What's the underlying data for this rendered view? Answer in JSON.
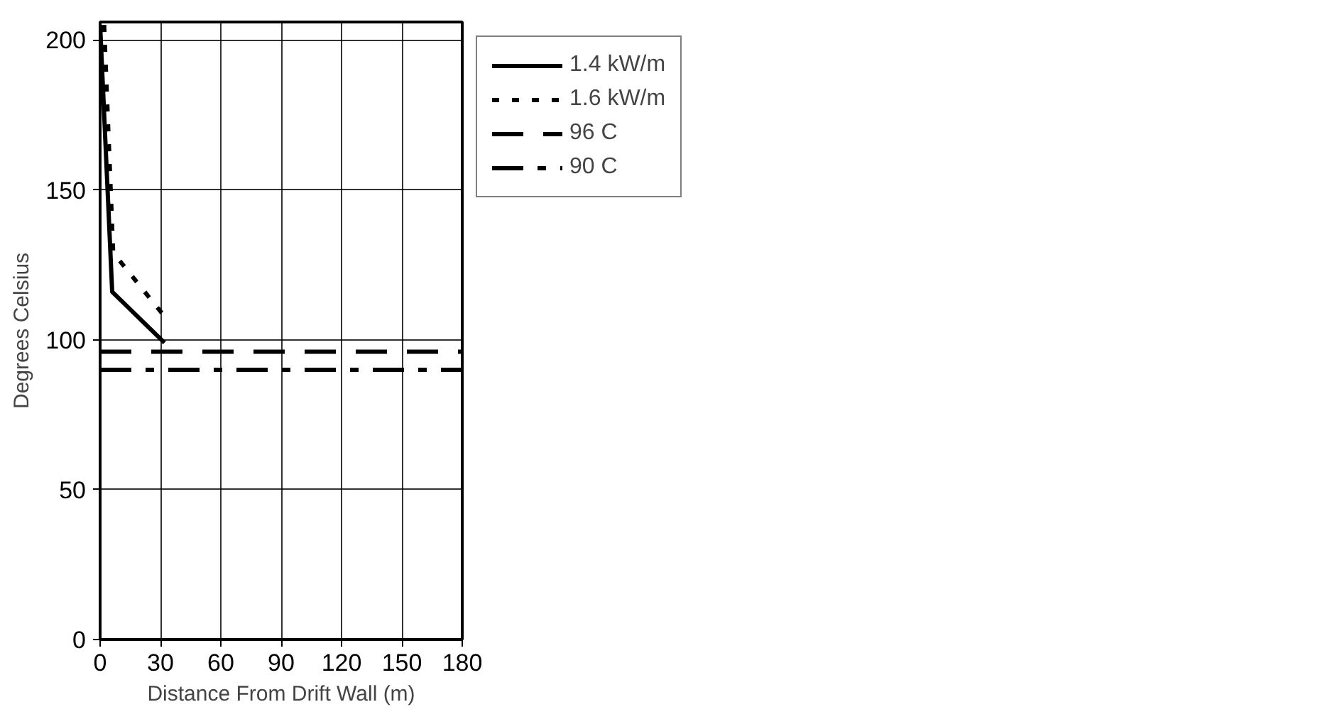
{
  "chart_data": {
    "type": "line",
    "xlabel": "Distance From Drift Wall (m)",
    "ylabel": "Degrees Celsius",
    "xlim": [
      0,
      180
    ],
    "ylim": [
      0,
      206
    ],
    "xticks": [
      0,
      30,
      60,
      90,
      120,
      150,
      180
    ],
    "yticks": [
      0,
      50,
      100,
      150,
      200
    ],
    "grid": true,
    "legend": "top right",
    "marker": "none",
    "series": [
      {
        "name": "1.4 kW/m",
        "color": "#000000",
        "line_style": "solid",
        "x": [
          0,
          6,
          32
        ],
        "values": [
          205,
          116,
          99
        ]
      },
      {
        "name": "1.6 kW/m",
        "color": "#000000",
        "line_style": "dotted",
        "x": [
          2,
          6.5,
          33
        ],
        "values": [
          205,
          129,
          107
        ]
      },
      {
        "name": "96 C",
        "color": "#000000",
        "line_style": "dashed",
        "x": [
          0,
          180
        ],
        "values": [
          96,
          96
        ]
      },
      {
        "name": "90 C",
        "color": "#000000",
        "line_style": "dashdot",
        "x": [
          0,
          180
        ],
        "values": [
          90,
          90
        ]
      }
    ]
  }
}
